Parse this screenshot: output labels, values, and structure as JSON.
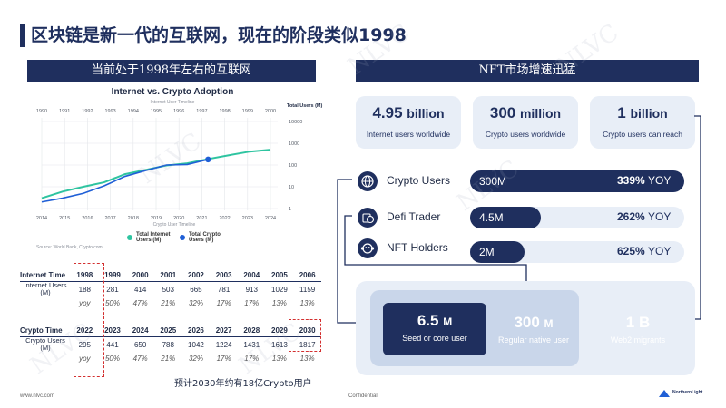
{
  "page": {
    "title": "区块链是新一代的互联网，现在的阶段类似1998",
    "left_header": "当前处于1998年左右的互联网",
    "right_header": "NFT市场增速迅猛",
    "footer_left": "www.nlvc.com",
    "footer_center": "Confidential",
    "footer_logo_text": "NorthernLight",
    "note": "预计2030年约有18亿Crypto用户",
    "watermark": "NLVC"
  },
  "chart_data": {
    "type": "line",
    "title": "Internet vs. Crypto Adoption",
    "top_axis_label": "Internet User Timeline",
    "bottom_axis_label": "Crypto User Timeline",
    "ylabel": "Total Users (M)",
    "top_ticks": [
      "1990",
      "1991",
      "1992",
      "1993",
      "1994",
      "1995",
      "1996",
      "1997",
      "1998",
      "1999",
      "2000"
    ],
    "bottom_ticks": [
      "2014",
      "2015",
      "2016",
      "2017",
      "2018",
      "2019",
      "2020",
      "2021",
      "2022",
      "2023",
      "2024"
    ],
    "yscale": "log",
    "y_ticks": [
      "10000",
      "1000",
      "100",
      "10",
      "1"
    ],
    "series": [
      {
        "name": "Total Internet Users (M)",
        "color": "#2ec4a0",
        "x": [
          0,
          1,
          2,
          3,
          4,
          5,
          6,
          7,
          8,
          9,
          10,
          11
        ],
        "y": [
          3,
          6,
          10,
          16,
          38,
          60,
          95,
          120,
          188,
          281,
          414,
          503
        ]
      },
      {
        "name": "Total Crypto Users (M)",
        "color": "#1f5fd6",
        "x": [
          0,
          1,
          2,
          3,
          4,
          5,
          6,
          7,
          8
        ],
        "y": [
          2,
          3,
          5,
          11,
          30,
          56,
          100,
          106,
          180
        ]
      }
    ],
    "legend_items": [
      "Total Internet Users (M)",
      "Total Crypto Users (M)"
    ],
    "source": "Source: World Bank, Crypto.com",
    "grid": true
  },
  "internet_table": {
    "header": [
      "Internet Time",
      "1998",
      "1999",
      "2000",
      "2001",
      "2002",
      "2003",
      "2004",
      "2005",
      "2006"
    ],
    "row_label": "Internet Users (M)",
    "values": [
      "188",
      "281",
      "414",
      "503",
      "665",
      "781",
      "913",
      "1029",
      "1159"
    ],
    "yoy": [
      "yoy",
      "50%",
      "47%",
      "21%",
      "32%",
      "17%",
      "17%",
      "13%",
      "13%"
    ]
  },
  "crypto_table": {
    "header": [
      "Crypto Time",
      "2022",
      "2023",
      "2024",
      "2025",
      "2026",
      "2027",
      "2028",
      "2029",
      "2030"
    ],
    "row_label": "Crypto Users (M)",
    "values": [
      "295",
      "441",
      "650",
      "788",
      "1042",
      "1224",
      "1431",
      "1613",
      "1817"
    ],
    "yoy": [
      "yoy",
      "50%",
      "47%",
      "21%",
      "32%",
      "17%",
      "17%",
      "13%",
      "13%"
    ]
  },
  "stats": [
    {
      "value": "4.95",
      "unit": "billion",
      "label": "Internet users worldwide"
    },
    {
      "value": "300",
      "unit": "million",
      "label": "Crypto users worldwide"
    },
    {
      "value": "1",
      "unit": "billion",
      "label": "Crypto users can reach"
    }
  ],
  "categories": [
    {
      "label": "Crypto Users",
      "icon": "globe-icon",
      "value": "300M",
      "yoy": "339%",
      "fill": 1.0
    },
    {
      "label": "Defi Trader",
      "icon": "coins-icon",
      "value": "4.5M",
      "yoy": "262%",
      "fill": 0.33
    },
    {
      "label": "NFT Holders",
      "icon": "monkey-icon",
      "value": "2M",
      "yoy": "625%",
      "fill": 0.2
    }
  ],
  "yoy_suffix": "YOY",
  "funnel": [
    {
      "value": "6.5",
      "unit": "M",
      "label": "Seed or core user"
    },
    {
      "value": "300",
      "unit": "M",
      "label": "Regular native user"
    },
    {
      "value": "1",
      "unit": "B",
      "label": "Web2 migrants"
    }
  ],
  "colors": {
    "navy": "#1f2f5e",
    "light": "#e8eef7",
    "internet": "#2ec4a0",
    "crypto": "#1f5fd6",
    "dash": "#d32f2f"
  }
}
